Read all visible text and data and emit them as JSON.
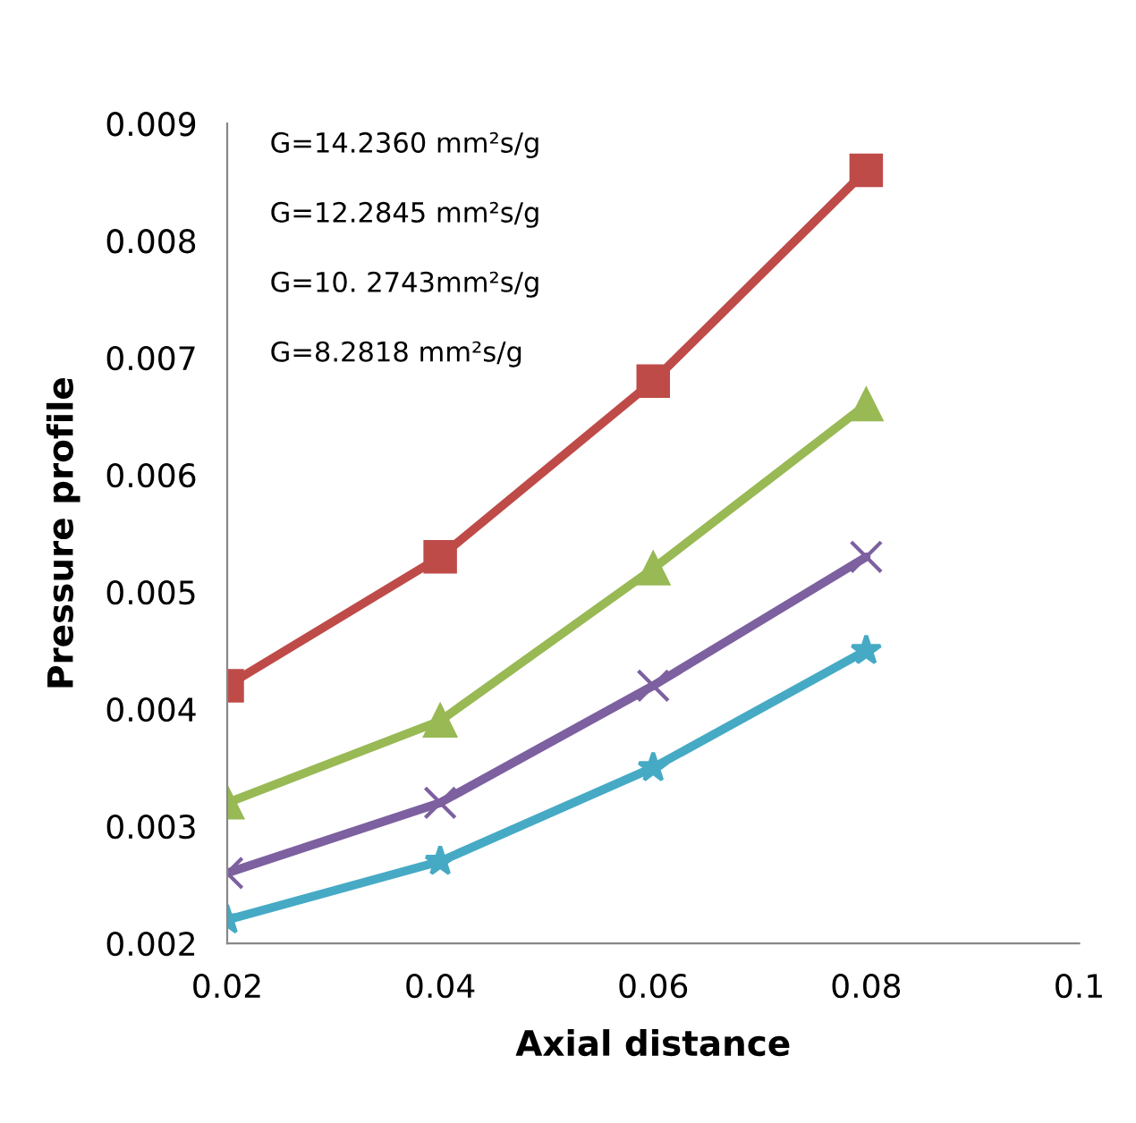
{
  "chart_data": {
    "type": "line",
    "xlabel": "Axial distance",
    "ylabel": "Pressure profile",
    "x": [
      0.02,
      0.04,
      0.06,
      0.08
    ],
    "series": [
      {
        "color": "#be4b48",
        "marker": "square",
        "values": [
          0.0042,
          0.0053,
          0.0068,
          0.0086
        ]
      },
      {
        "color": "#98b954",
        "marker": "triangle",
        "values": [
          0.0032,
          0.0039,
          0.0052,
          0.0066
        ]
      },
      {
        "color": "#7d60a0",
        "marker": "cross",
        "values": [
          0.0026,
          0.0032,
          0.0042,
          0.0053
        ]
      },
      {
        "color": "#46aac5",
        "marker": "star",
        "values": [
          0.0022,
          0.0027,
          0.0035,
          0.0045
        ]
      }
    ],
    "annotations": [
      "G=14.2360 mm²s/g",
      "G=12.2845 mm²s/g",
      "G=10. 2743mm²s/g",
      "G=8.2818 mm²s/g"
    ],
    "xlim": [
      0.02,
      0.1
    ],
    "xticks": [
      0.02,
      0.04,
      0.06,
      0.08,
      0.1
    ],
    "ylim": [
      0.002,
      0.009
    ],
    "yticks": [
      0.002,
      0.003,
      0.004,
      0.005,
      0.006,
      0.007,
      0.008,
      0.009
    ],
    "grid": false,
    "legend": false,
    "line_style": "solid"
  }
}
